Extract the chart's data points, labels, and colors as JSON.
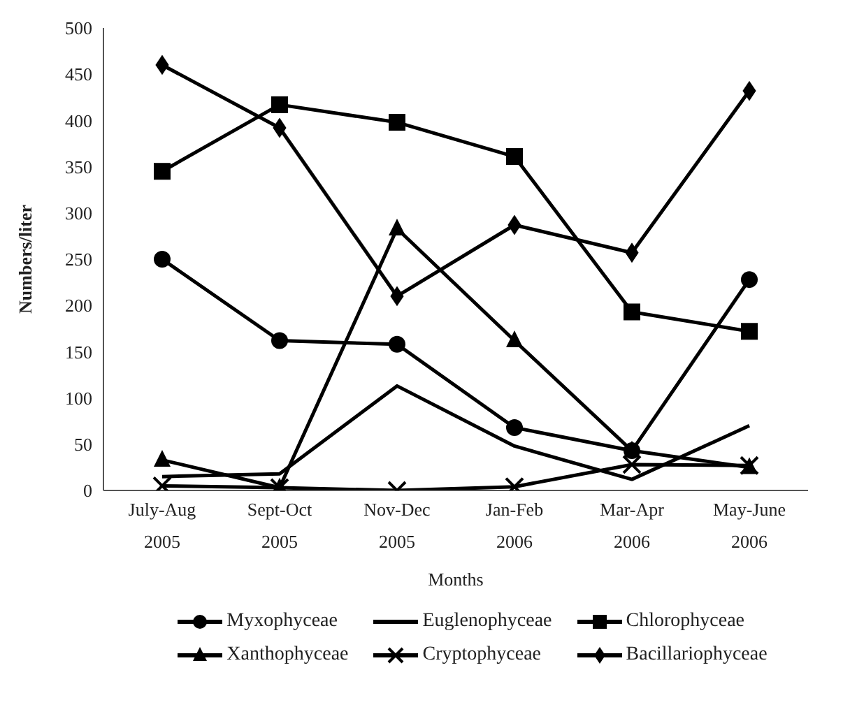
{
  "chart_data": {
    "type": "line",
    "xlabel": "Months",
    "ylabel": "Numbers/liter",
    "categories": [
      "July-Aug 2005",
      "Sept-Oct 2005",
      "Nov-Dec 2005",
      "Jan-Feb 2006",
      "Mar-Apr 2006",
      "May-June 2006"
    ],
    "ylim": [
      0,
      500
    ],
    "yticks": [
      0,
      50,
      100,
      150,
      200,
      250,
      300,
      350,
      400,
      450,
      500
    ],
    "grid": false,
    "legend": "bottom",
    "line_style": "solid",
    "series": [
      {
        "name": "Myxophyceae",
        "color": "#000000",
        "marker": "circle",
        "values": [
          250,
          162,
          158,
          68,
          43,
          228
        ]
      },
      {
        "name": "Euglenophyceae",
        "color": "#000000",
        "marker": "none",
        "values": [
          15,
          18,
          113,
          48,
          12,
          70
        ]
      },
      {
        "name": "Chlorophyceae",
        "color": "#000000",
        "marker": "square",
        "values": [
          345,
          417,
          398,
          361,
          193,
          172
        ]
      },
      {
        "name": "Xanthophyceae",
        "color": "#000000",
        "marker": "triangle",
        "values": [
          33,
          3,
          283,
          162,
          43,
          25
        ]
      },
      {
        "name": "Cryptophyceae",
        "color": "#000000",
        "marker": "cross",
        "values": [
          5,
          3,
          0,
          4,
          28,
          27
        ]
      },
      {
        "name": "Bacillariophyceae",
        "color": "#000000",
        "marker": "diamond",
        "values": [
          460,
          392,
          210,
          287,
          257,
          432
        ]
      }
    ]
  }
}
